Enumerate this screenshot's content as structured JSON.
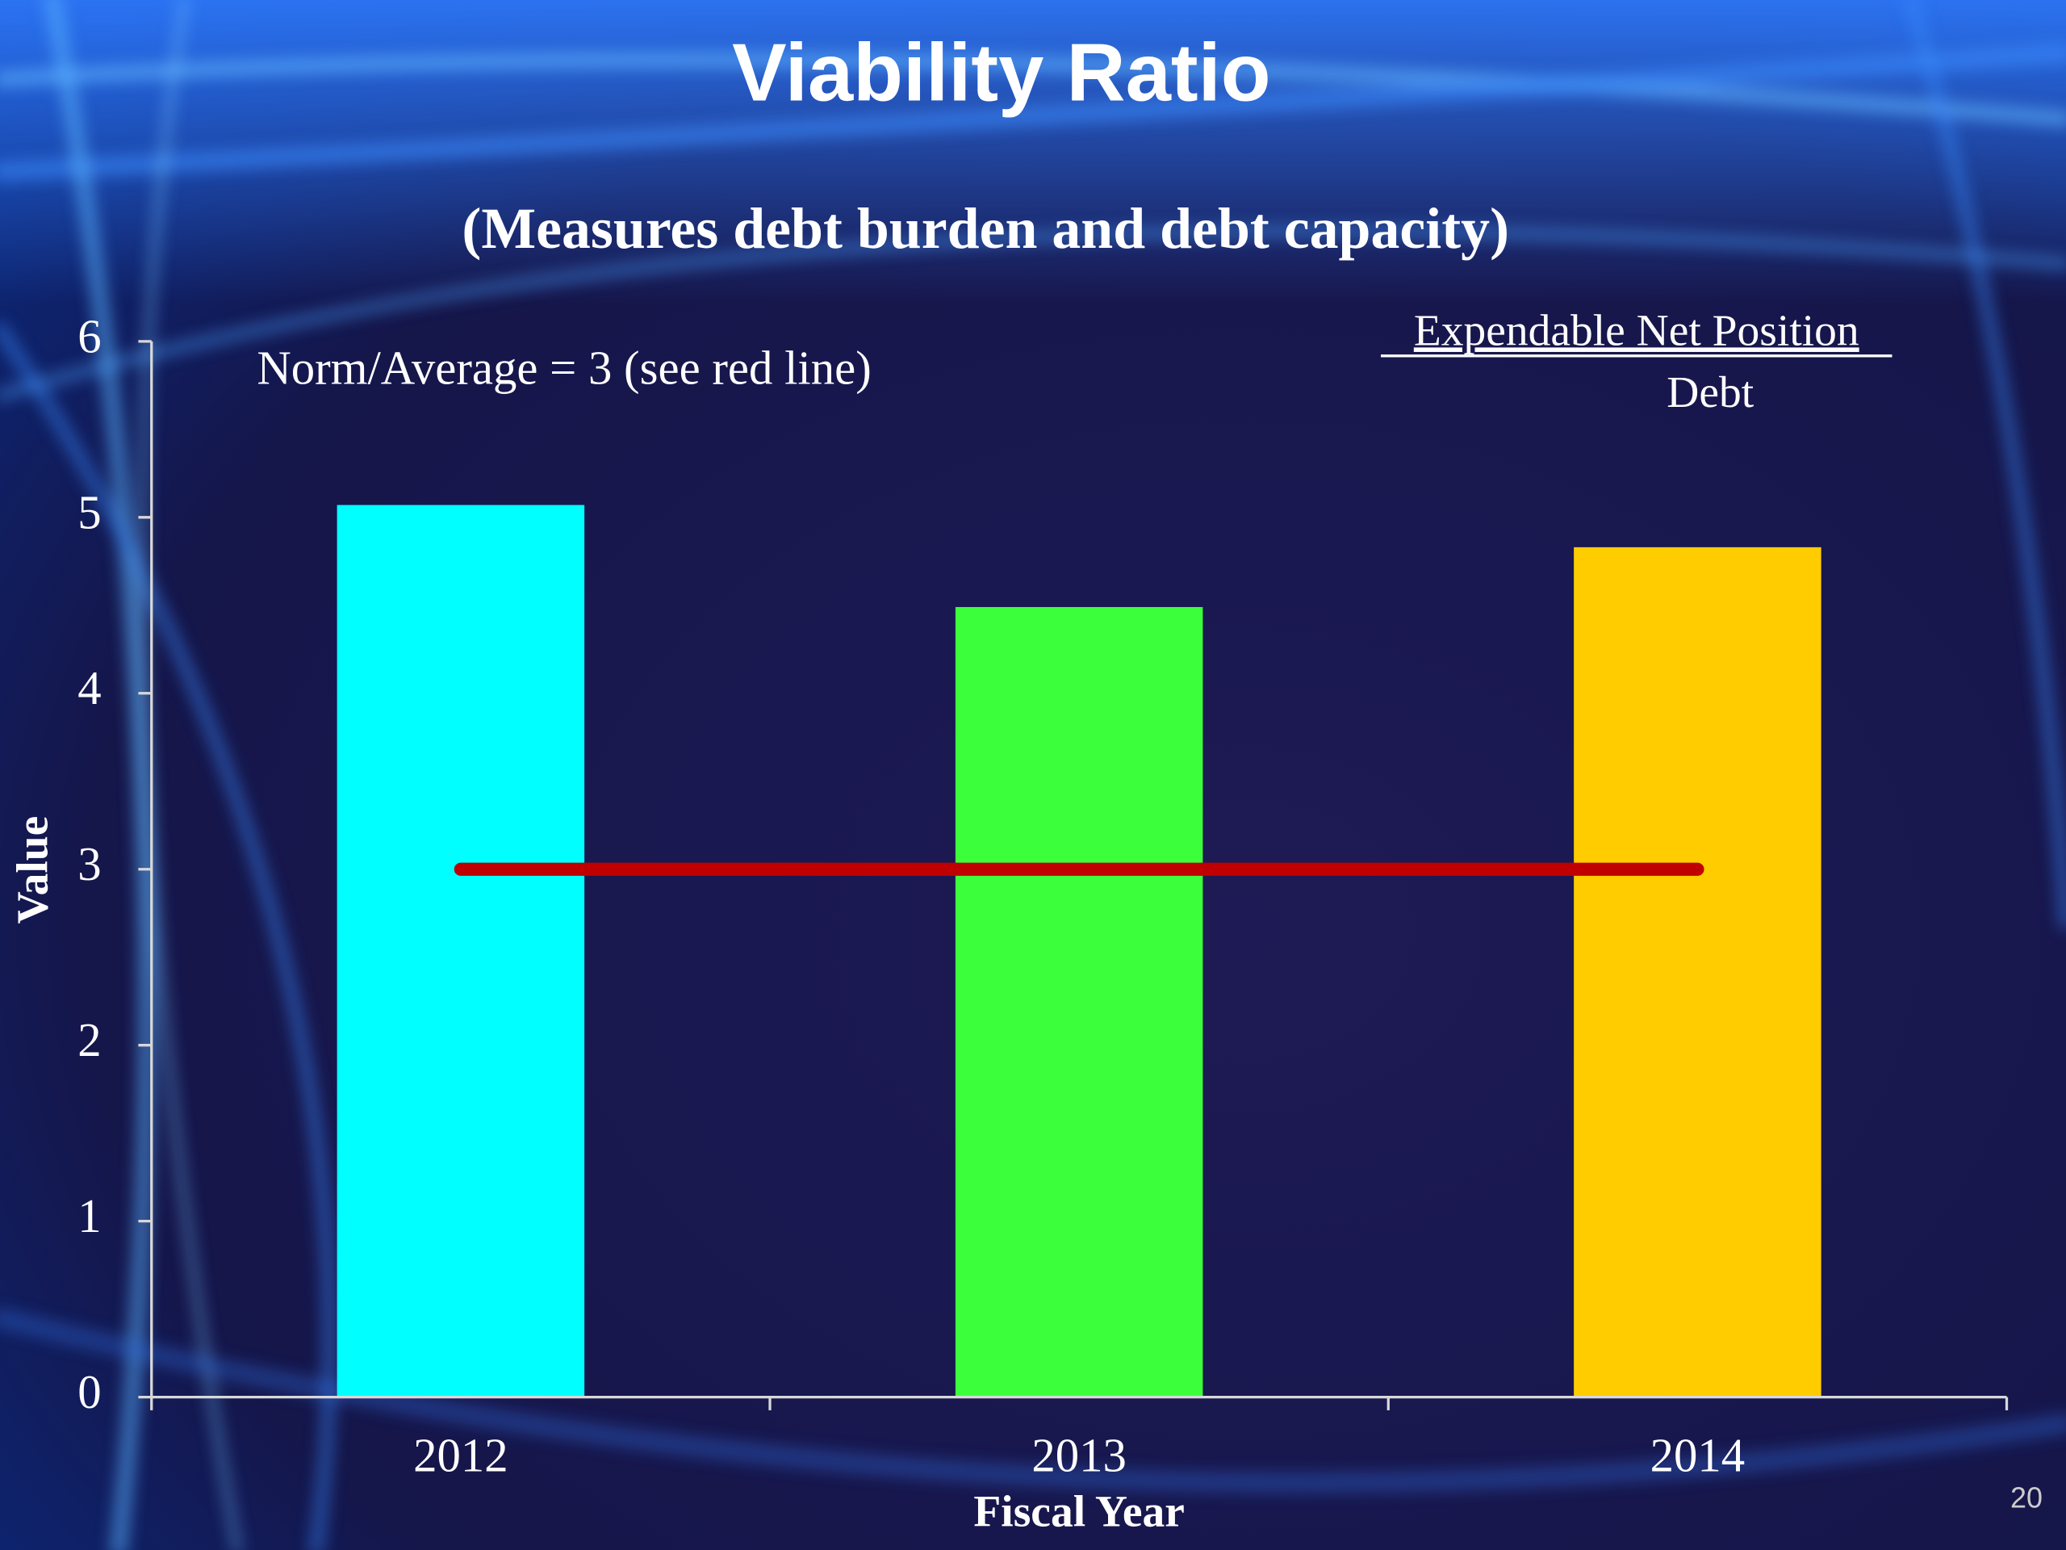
{
  "chart_data": {
    "type": "bar",
    "title": "Viability Ratio",
    "subtitle": "(Measures debt burden and debt capacity)",
    "annotation": "Norm/Average =  3 (see red line)",
    "formula": {
      "numerator": "Expendable Net Position",
      "denominator": "Debt"
    },
    "x_label": "Fiscal Year",
    "y_label": "Value",
    "categories": [
      "2012",
      "2013",
      "2014"
    ],
    "values": [
      5.07,
      4.49,
      4.83
    ],
    "colors": [
      "#00ffff",
      "#3cff3c",
      "#ffcc00"
    ],
    "reference_line": {
      "value": 3,
      "color": "#c00000"
    },
    "ylim": [
      0,
      6
    ],
    "yticks": [
      0,
      1,
      2,
      3,
      4,
      5,
      6
    ]
  },
  "page_number": "20"
}
